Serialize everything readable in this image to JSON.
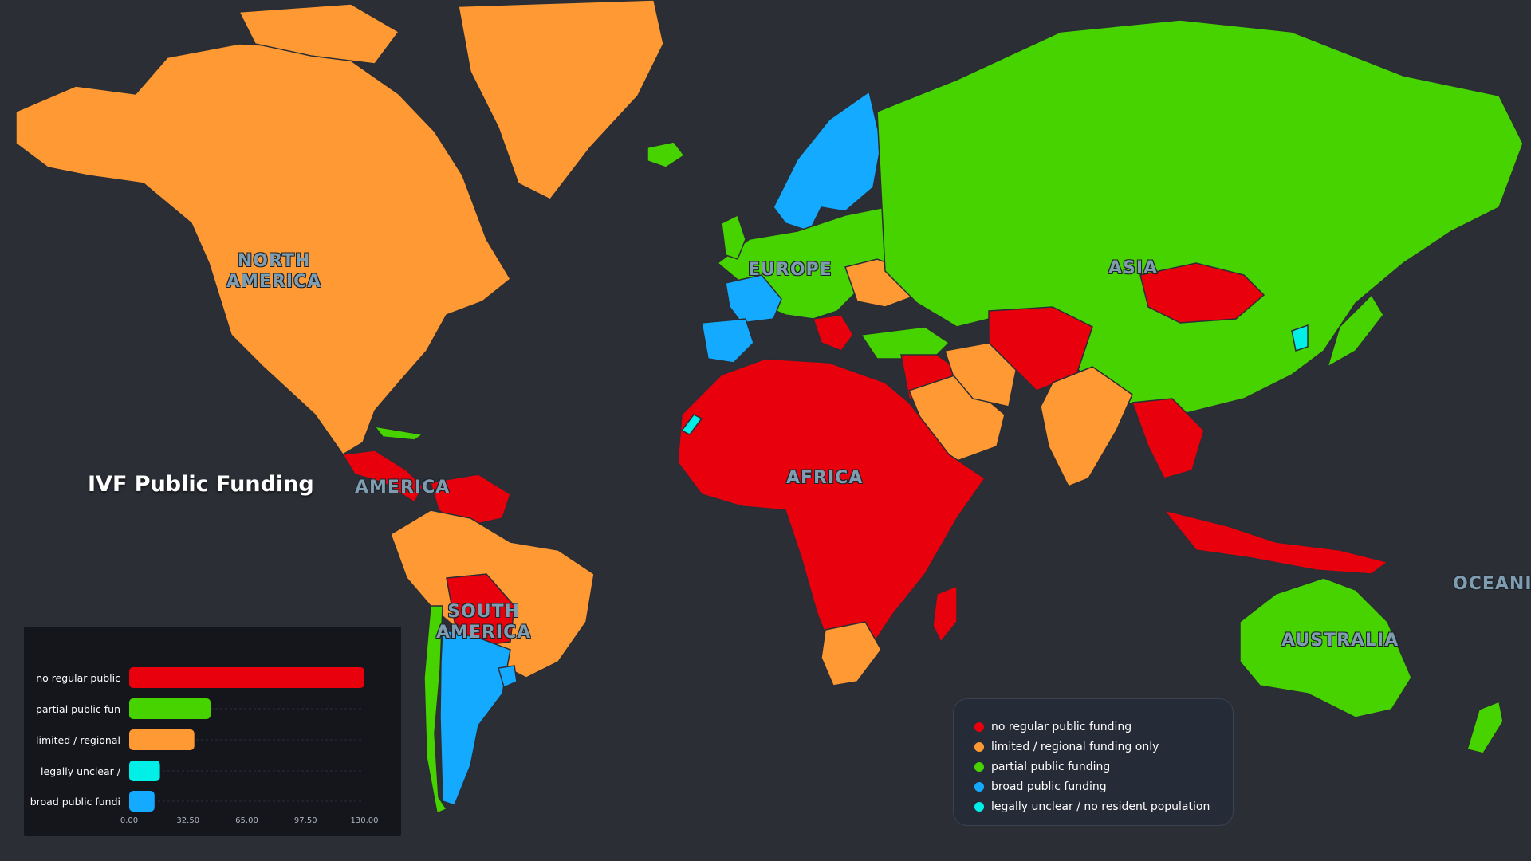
{
  "title": "IVF Public Funding",
  "colors": {
    "no_regular": "#e8000d",
    "limited": "#ff9933",
    "partial": "#46d300",
    "broad": "#13aaff",
    "unclear": "#00f0e8",
    "ocean": "#2b2e35",
    "land_unknown": "#4a4d55"
  },
  "region_labels": [
    {
      "id": "north-america",
      "text": "NORTH\nAMERICA"
    },
    {
      "id": "america",
      "text": "AMERICA"
    },
    {
      "id": "south-america",
      "text": "SOUTH\nAMERICA"
    },
    {
      "id": "europe",
      "text": "EUROPE"
    },
    {
      "id": "asia",
      "text": "ASIA"
    },
    {
      "id": "africa",
      "text": "AFRICA"
    },
    {
      "id": "australia",
      "text": "AUSTRALIA"
    },
    {
      "id": "oceania",
      "text": "OCEANI"
    }
  ],
  "legend": {
    "items": [
      {
        "label": "no regular public funding",
        "color": "#e8000d"
      },
      {
        "label": "limited / regional funding only",
        "color": "#ff9933"
      },
      {
        "label": "partial public funding",
        "color": "#46d300"
      },
      {
        "label": "broad public funding",
        "color": "#13aaff"
      },
      {
        "label": "legally unclear / no resident population",
        "color": "#00f0e8"
      }
    ]
  },
  "chart_data": {
    "type": "bar",
    "orientation": "horizontal",
    "categories": [
      "no regular public",
      "partial public fun",
      "limited / regional",
      "legally unclear /",
      "broad public fundi"
    ],
    "values": [
      130,
      45,
      36,
      17,
      14
    ],
    "colors": [
      "#e8000d",
      "#46d300",
      "#ff9933",
      "#00f0e8",
      "#13aaff"
    ],
    "xlim": [
      0,
      130
    ],
    "xticks": [
      "0.00",
      "32.50",
      "65.00",
      "97.50",
      "130.00"
    ]
  }
}
